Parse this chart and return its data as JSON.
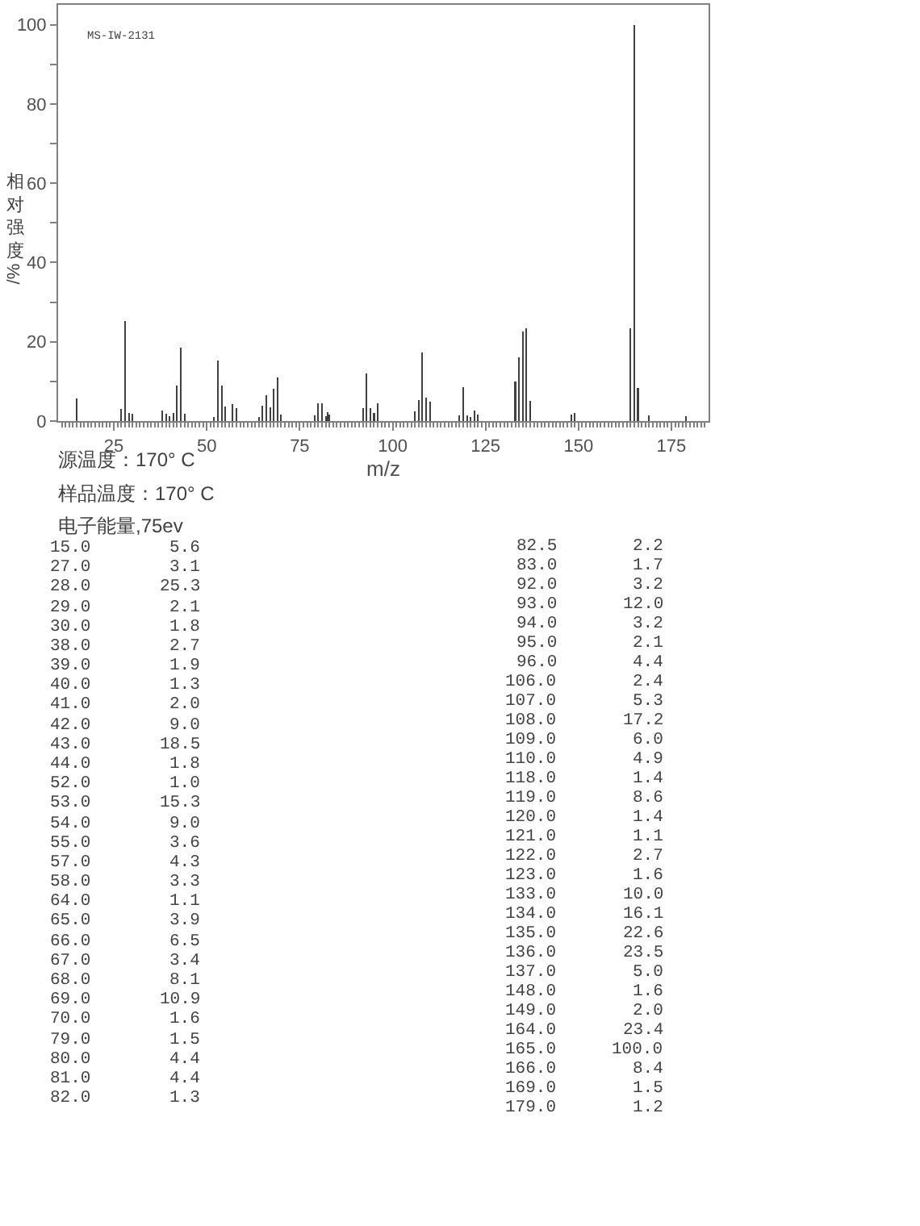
{
  "chart_data": {
    "type": "bar",
    "x": [
      15,
      27,
      28,
      29,
      30,
      38,
      39,
      40,
      41,
      42,
      43,
      44,
      52,
      53,
      54,
      55,
      57,
      58,
      64,
      65,
      66,
      67,
      68,
      69,
      70,
      79,
      80,
      81,
      82,
      82.5,
      83,
      92,
      93,
      94,
      95,
      96,
      106,
      107,
      108,
      109,
      110,
      118,
      119,
      120,
      121,
      122,
      123,
      133,
      134,
      135,
      136,
      137,
      148,
      149,
      164,
      165,
      166,
      169,
      179
    ],
    "values": [
      5.6,
      3.1,
      25.3,
      2.1,
      1.8,
      2.7,
      1.9,
      1.3,
      2.0,
      9.0,
      18.5,
      1.8,
      1.0,
      15.3,
      9.0,
      3.6,
      4.3,
      3.3,
      1.1,
      3.9,
      6.5,
      3.4,
      8.1,
      10.9,
      1.6,
      1.5,
      4.4,
      4.4,
      1.3,
      2.2,
      1.7,
      3.2,
      12.0,
      3.2,
      2.1,
      4.4,
      2.4,
      5.3,
      17.2,
      6.0,
      4.9,
      1.4,
      8.6,
      1.4,
      1.1,
      2.7,
      1.6,
      10.0,
      16.1,
      22.6,
      23.5,
      5.0,
      1.6,
      2.0,
      23.4,
      100.0,
      8.4,
      1.5,
      1.2
    ],
    "color": "#404040",
    "xlabel": "m/z",
    "ylabel": "相对强度/%",
    "xlim": [
      10,
      185
    ],
    "ylim": [
      0,
      105
    ],
    "xticks": [
      {
        "value": 11,
        "label": null
      },
      {
        "value": 12,
        "label": null
      },
      {
        "value": 13,
        "label": null
      },
      {
        "value": 14,
        "label": null
      },
      {
        "value": 15,
        "label": null
      },
      {
        "value": 16,
        "label": null
      },
      {
        "value": 17,
        "label": null
      },
      {
        "value": 18,
        "label": null
      },
      {
        "value": 19,
        "label": null
      },
      {
        "value": 20,
        "label": null
      },
      {
        "value": 21,
        "label": null
      },
      {
        "value": 22,
        "label": null
      },
      {
        "value": 23,
        "label": null
      },
      {
        "value": 24,
        "label": null
      },
      25,
      {
        "value": 26,
        "label": null
      },
      {
        "value": 27,
        "label": null
      },
      {
        "value": 28,
        "label": null
      },
      {
        "value": 29,
        "label": null
      },
      {
        "value": 30,
        "label": null
      },
      {
        "value": 31,
        "label": null
      },
      {
        "value": 32,
        "label": null
      },
      {
        "value": 33,
        "label": null
      },
      {
        "value": 34,
        "label": null
      },
      {
        "value": 35,
        "label": null
      },
      {
        "value": 36,
        "label": null
      },
      {
        "value": 37,
        "label": null
      },
      {
        "value": 38,
        "label": null
      },
      {
        "value": 39,
        "label": null
      },
      {
        "value": 40,
        "label": null
      },
      {
        "value": 41,
        "label": null
      },
      {
        "value": 42,
        "label": null
      },
      {
        "value": 43,
        "label": null
      },
      {
        "value": 44,
        "label": null
      },
      {
        "value": 45,
        "label": null
      },
      {
        "value": 46,
        "label": null
      },
      {
        "value": 47,
        "label": null
      },
      {
        "value": 48,
        "label": null
      },
      {
        "value": 49,
        "label": null
      },
      50,
      {
        "value": 51,
        "label": null
      },
      {
        "value": 52,
        "label": null
      },
      {
        "value": 53,
        "label": null
      },
      {
        "value": 54,
        "label": null
      },
      {
        "value": 55,
        "label": null
      },
      {
        "value": 56,
        "label": null
      },
      {
        "value": 57,
        "label": null
      },
      {
        "value": 58,
        "label": null
      },
      {
        "value": 59,
        "label": null
      },
      {
        "value": 60,
        "label": null
      },
      {
        "value": 61,
        "label": null
      },
      {
        "value": 62,
        "label": null
      },
      {
        "value": 63,
        "label": null
      },
      {
        "value": 64,
        "label": null
      },
      {
        "value": 65,
        "label": null
      },
      {
        "value": 66,
        "label": null
      },
      {
        "value": 67,
        "label": null
      },
      {
        "value": 68,
        "label": null
      },
      {
        "value": 69,
        "label": null
      },
      {
        "value": 70,
        "label": null
      },
      {
        "value": 71,
        "label": null
      },
      {
        "value": 72,
        "label": null
      },
      {
        "value": 73,
        "label": null
      },
      {
        "value": 74,
        "label": null
      },
      75,
      {
        "value": 76,
        "label": null
      },
      {
        "value": 77,
        "label": null
      },
      {
        "value": 78,
        "label": null
      },
      {
        "value": 79,
        "label": null
      },
      {
        "value": 80,
        "label": null
      },
      {
        "value": 81,
        "label": null
      },
      {
        "value": 82,
        "label": null
      },
      {
        "value": 83,
        "label": null
      },
      {
        "value": 84,
        "label": null
      },
      {
        "value": 85,
        "label": null
      },
      {
        "value": 86,
        "label": null
      },
      {
        "value": 87,
        "label": null
      },
      {
        "value": 88,
        "label": null
      },
      {
        "value": 89,
        "label": null
      },
      {
        "value": 90,
        "label": null
      },
      {
        "value": 91,
        "label": null
      },
      {
        "value": 92,
        "label": null
      },
      {
        "value": 93,
        "label": null
      },
      {
        "value": 94,
        "label": null
      },
      {
        "value": 95,
        "label": null
      },
      {
        "value": 96,
        "label": null
      },
      {
        "value": 97,
        "label": null
      },
      {
        "value": 98,
        "label": null
      },
      {
        "value": 99,
        "label": null
      },
      100,
      {
        "value": 101,
        "label": null
      },
      {
        "value": 102,
        "label": null
      },
      {
        "value": 103,
        "label": null
      },
      {
        "value": 104,
        "label": null
      },
      {
        "value": 105,
        "label": null
      },
      {
        "value": 106,
        "label": null
      },
      {
        "value": 107,
        "label": null
      },
      {
        "value": 108,
        "label": null
      },
      {
        "value": 109,
        "label": null
      },
      {
        "value": 110,
        "label": null
      },
      {
        "value": 111,
        "label": null
      },
      {
        "value": 112,
        "label": null
      },
      {
        "value": 113,
        "label": null
      },
      {
        "value": 114,
        "label": null
      },
      {
        "value": 115,
        "label": null
      },
      {
        "value": 116,
        "label": null
      },
      {
        "value": 117,
        "label": null
      },
      {
        "value": 118,
        "label": null
      },
      {
        "value": 119,
        "label": null
      },
      {
        "value": 120,
        "label": null
      },
      {
        "value": 121,
        "label": null
      },
      {
        "value": 122,
        "label": null
      },
      {
        "value": 123,
        "label": null
      },
      {
        "value": 124,
        "label": null
      },
      125,
      {
        "value": 126,
        "label": null
      },
      {
        "value": 127,
        "label": null
      },
      {
        "value": 128,
        "label": null
      },
      {
        "value": 129,
        "label": null
      },
      {
        "value": 130,
        "label": null
      },
      {
        "value": 131,
        "label": null
      },
      {
        "value": 132,
        "label": null
      },
      {
        "value": 133,
        "label": null
      },
      {
        "value": 134,
        "label": null
      },
      {
        "value": 135,
        "label": null
      },
      {
        "value": 136,
        "label": null
      },
      {
        "value": 137,
        "label": null
      },
      {
        "value": 138,
        "label": null
      },
      {
        "value": 139,
        "label": null
      },
      {
        "value": 140,
        "label": null
      },
      {
        "value": 141,
        "label": null
      },
      {
        "value": 142,
        "label": null
      },
      {
        "value": 143,
        "label": null
      },
      {
        "value": 144,
        "label": null
      },
      {
        "value": 145,
        "label": null
      },
      {
        "value": 146,
        "label": null
      },
      {
        "value": 147,
        "label": null
      },
      {
        "value": 148,
        "label": null
      },
      {
        "value": 149,
        "label": null
      },
      150,
      {
        "value": 151,
        "label": null
      },
      {
        "value": 152,
        "label": null
      },
      {
        "value": 153,
        "label": null
      },
      {
        "value": 154,
        "label": null
      },
      {
        "value": 155,
        "label": null
      },
      {
        "value": 156,
        "label": null
      },
      {
        "value": 157,
        "label": null
      },
      {
        "value": 158,
        "label": null
      },
      {
        "value": 159,
        "label": null
      },
      {
        "value": 160,
        "label": null
      },
      {
        "value": 161,
        "label": null
      },
      {
        "value": 162,
        "label": null
      },
      {
        "value": 163,
        "label": null
      },
      {
        "value": 164,
        "label": null
      },
      {
        "value": 165,
        "label": null
      },
      {
        "value": 166,
        "label": null
      },
      {
        "value": 167,
        "label": null
      },
      {
        "value": 168,
        "label": null
      },
      {
        "value": 169,
        "label": null
      },
      {
        "value": 170,
        "label": null
      },
      {
        "value": 171,
        "label": null
      },
      {
        "value": 172,
        "label": null
      },
      {
        "value": 173,
        "label": null
      },
      {
        "value": 174,
        "label": null
      },
      175,
      {
        "value": 176,
        "label": null
      },
      {
        "value": 177,
        "label": null
      },
      {
        "value": 178,
        "label": null
      },
      {
        "value": 179,
        "label": null
      },
      {
        "value": 180,
        "label": null
      },
      {
        "value": 181,
        "label": null
      },
      {
        "value": 182,
        "label": null
      },
      {
        "value": 183,
        "label": null
      },
      {
        "value": 184,
        "label": null
      }
    ],
    "yticks": [
      0,
      {
        "value": 10,
        "label": null
      },
      20,
      {
        "value": 30,
        "label": null
      },
      40,
      {
        "value": 50,
        "label": null
      },
      60,
      {
        "value": 70,
        "label": null
      },
      80,
      {
        "value": 90,
        "label": null
      },
      100
    ],
    "annotations": [
      "MS-IW-2131",
      "源温度：170° C",
      "样品温度：170° C",
      "电子能量,75ev",
      "15.0",
      "5.6",
      "27.0",
      "3.1",
      "28.0",
      "25.3",
      "29.0",
      "2.1",
      "30.0",
      "1.8",
      "38.0",
      "2.7",
      "39.0",
      "1.9",
      "40.0",
      "1.3",
      "41.0",
      "2.0",
      "42.0",
      "9.0",
      "43.0",
      "18.5",
      "44.0",
      "1.8",
      "52.0",
      "1.0",
      "53.0",
      "15.3",
      "54.0",
      "9.0",
      "55.0",
      "3.6",
      "57.0",
      "4.3",
      "58.0",
      "3.3",
      "64.0",
      "1.1",
      "65.0",
      "3.9",
      "66.0",
      "6.5",
      "67.0",
      "3.4",
      "68.0",
      "8.1",
      "69.0",
      "10.9",
      "70.0",
      "1.6",
      "79.0",
      "1.5",
      "80.0",
      "4.4",
      "81.0",
      "4.4",
      "82.0",
      "1.3",
      "82.5",
      "2.2",
      "83.0",
      "1.7",
      "92.0",
      "3.2",
      "93.0",
      "12.0",
      "94.0",
      "3.2",
      "95.0",
      "2.1",
      "96.0",
      "4.4",
      "106.0",
      "2.4",
      "107.0",
      "5.3",
      "108.0",
      "17.2",
      "109.0",
      "6.0",
      "110.0",
      "4.9",
      "118.0",
      "1.4",
      "119.0",
      "8.6",
      "120.0",
      "1.4",
      "121.0",
      "1.1",
      "122.0",
      "2.7",
      "123.0",
      "1.6",
      "133.0",
      "10.0",
      "134.0",
      "16.1",
      "135.0",
      "22.6",
      "136.0",
      "23.5",
      "137.0",
      "5.0",
      "148.0",
      "1.6",
      "149.0",
      "2.0",
      "164.0",
      "23.4",
      "165.0",
      "100.0",
      "166.0",
      "8.4",
      "169.0",
      "1.5",
      "179.0",
      "1.2"
    ]
  }
}
